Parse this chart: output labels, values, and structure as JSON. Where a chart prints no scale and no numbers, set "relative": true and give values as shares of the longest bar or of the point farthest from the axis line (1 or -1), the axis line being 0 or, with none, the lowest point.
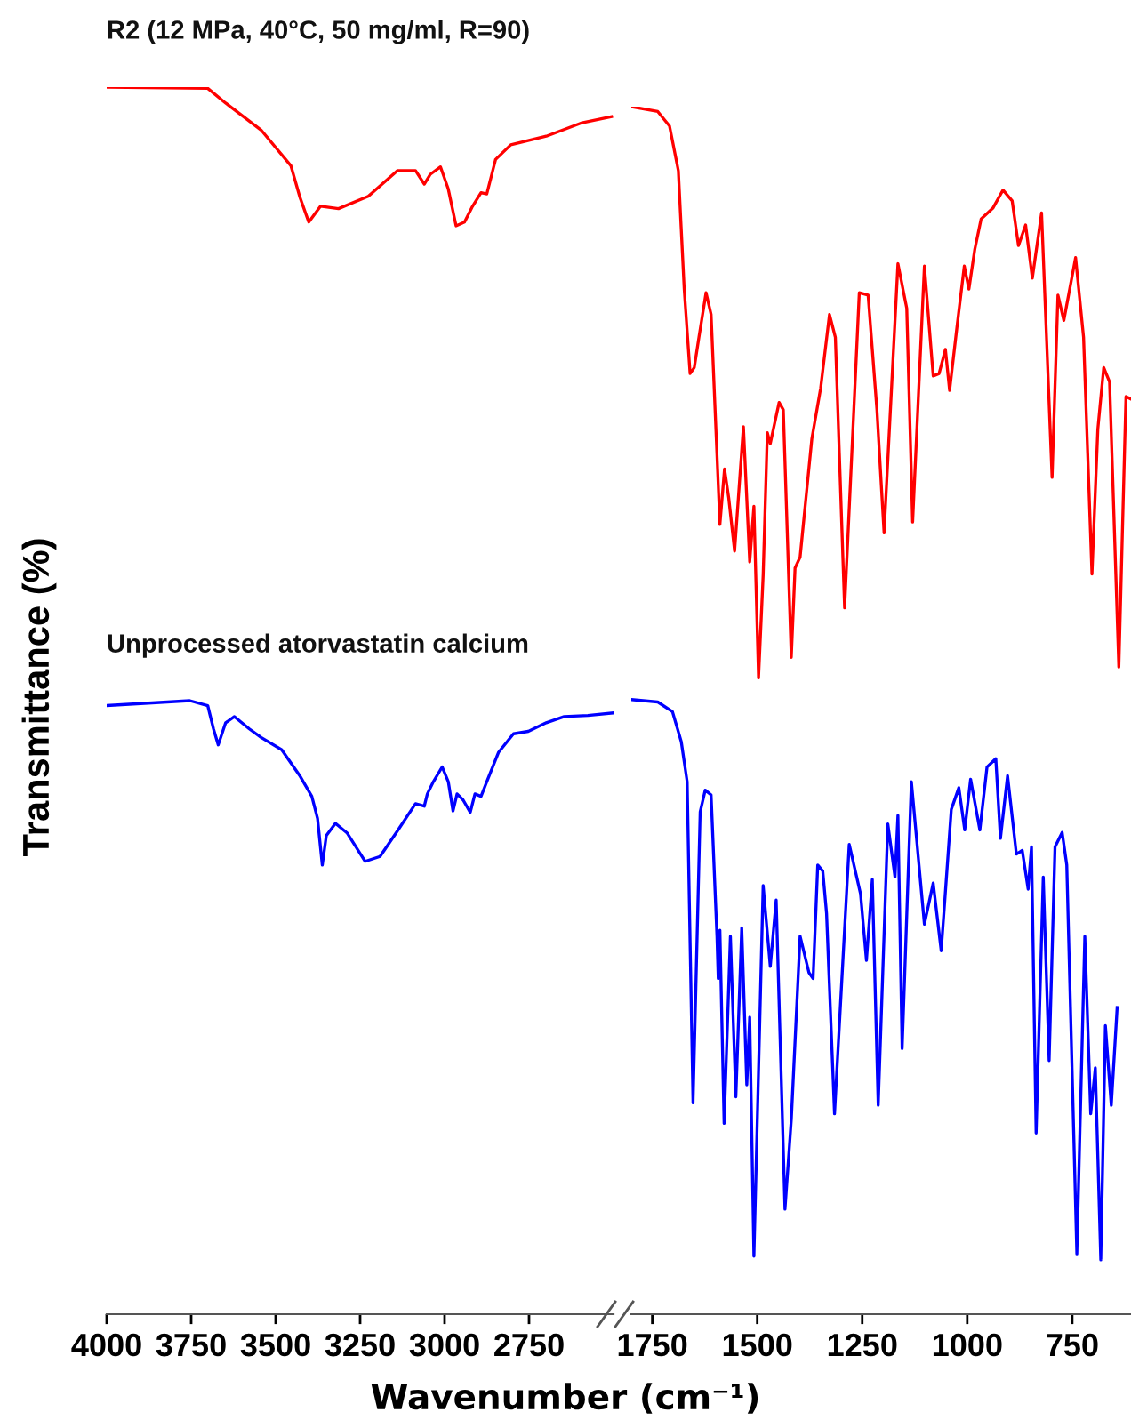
{
  "chart_data": [
    {
      "type": "line",
      "relative": true,
      "ylabel": "Transmittance (%)",
      "xlabel": "Wavenumber (cm⁻¹)",
      "xlim": [
        4000,
        2500
      ],
      "xticks": [
        4000,
        3750,
        3500,
        3250,
        3000,
        2750
      ],
      "tick_labels": "x",
      "grid": false,
      "legend": false,
      "series": [
        {
          "name": "R2 (12 MPa, 40°C, 50 mg/ml, R=90)",
          "color": "#ff0000",
          "x": [
            4000,
            3701,
            3648,
            3543,
            3455,
            3429,
            3402,
            3367,
            3314,
            3226,
            3139,
            3086,
            3060,
            3042,
            3012,
            2989,
            2966,
            2941,
            2919,
            2892,
            2875,
            2849,
            2804,
            2699,
            2593,
            2506
          ],
          "values": [
            1.0,
            0.999,
            0.987,
            0.965,
            0.936,
            0.911,
            0.89,
            0.903,
            0.901,
            0.911,
            0.932,
            0.932,
            0.921,
            0.929,
            0.935,
            0.917,
            0.887,
            0.89,
            0.902,
            0.914,
            0.913,
            0.941,
            0.953,
            0.96,
            0.971,
            0.976
          ]
        },
        {
          "name": "Unprocessed atorvastatin calcium",
          "color": "#0000ff",
          "x": [
            4000,
            3754,
            3701,
            3684,
            3670,
            3648,
            3622,
            3578,
            3543,
            3482,
            3429,
            3393,
            3376,
            3362,
            3350,
            3323,
            3288,
            3235,
            3191,
            3139,
            3086,
            3060,
            3051,
            3033,
            3007,
            2989,
            2975,
            2963,
            2945,
            2924,
            2910,
            2892,
            2875,
            2840,
            2796,
            2752,
            2699,
            2646,
            2576,
            2502
          ],
          "values": [
            0.496,
            0.5,
            0.496,
            0.477,
            0.464,
            0.482,
            0.487,
            0.477,
            0.47,
            0.46,
            0.439,
            0.422,
            0.404,
            0.366,
            0.39,
            0.4,
            0.392,
            0.369,
            0.373,
            0.394,
            0.416,
            0.414,
            0.424,
            0.434,
            0.446,
            0.434,
            0.41,
            0.424,
            0.419,
            0.409,
            0.424,
            0.422,
            0.434,
            0.458,
            0.473,
            0.475,
            0.482,
            0.487,
            0.488,
            0.49
          ]
        }
      ]
    },
    {
      "type": "line",
      "relative": true,
      "xlim": [
        1800,
        610
      ],
      "xticks": [
        1750,
        1500,
        1250,
        1000,
        750
      ],
      "tick_labels": "x",
      "grid": false,
      "legend": false,
      "series": [
        {
          "color": "#ff0000",
          "x": [
            1800,
            1737,
            1709,
            1688,
            1674,
            1660,
            1650,
            1639,
            1622,
            1610,
            1589,
            1578,
            1568,
            1554,
            1533,
            1518,
            1508,
            1497,
            1486,
            1476,
            1469,
            1448,
            1438,
            1419,
            1410,
            1398,
            1370,
            1349,
            1328,
            1314,
            1292,
            1257,
            1236,
            1215,
            1198,
            1165,
            1144,
            1130,
            1102,
            1081,
            1067,
            1052,
            1042,
            1024,
            1007,
            996,
            982,
            967,
            939,
            915,
            893,
            878,
            861,
            845,
            823,
            798,
            784,
            770,
            742,
            723,
            703,
            689,
            675,
            661,
            639,
            622,
            611
          ],
          "values": [
            1.0,
            0.996,
            0.984,
            0.947,
            0.849,
            0.779,
            0.784,
            0.809,
            0.846,
            0.828,
            0.654,
            0.7,
            0.676,
            0.632,
            0.735,
            0.623,
            0.669,
            0.527,
            0.612,
            0.73,
            0.721,
            0.755,
            0.749,
            0.544,
            0.618,
            0.627,
            0.725,
            0.767,
            0.828,
            0.809,
            0.585,
            0.846,
            0.844,
            0.749,
            0.647,
            0.87,
            0.833,
            0.656,
            0.868,
            0.777,
            0.779,
            0.799,
            0.765,
            0.819,
            0.868,
            0.849,
            0.882,
            0.907,
            0.916,
            0.931,
            0.922,
            0.885,
            0.902,
            0.858,
            0.912,
            0.693,
            0.844,
            0.823,
            0.875,
            0.809,
            0.613,
            0.733,
            0.784,
            0.772,
            0.536,
            0.76,
            0.758
          ]
        },
        {
          "color": "#0000ff",
          "x": [
            1800,
            1737,
            1702,
            1681,
            1667,
            1653,
            1636,
            1624,
            1610,
            1596,
            1593,
            1589,
            1579,
            1564,
            1551,
            1537,
            1525,
            1518,
            1508,
            1486,
            1469,
            1455,
            1434,
            1419,
            1398,
            1377,
            1367,
            1356,
            1344,
            1335,
            1316,
            1281,
            1254,
            1240,
            1226,
            1212,
            1189,
            1172,
            1165,
            1155,
            1133,
            1102,
            1081,
            1062,
            1038,
            1020,
            1006,
            992,
            970,
            953,
            932,
            921,
            904,
            883,
            869,
            855,
            847,
            836,
            819,
            805,
            791,
            774,
            763,
            739,
            720,
            706,
            695,
            682,
            671,
            657,
            643
          ],
          "values": [
            0.509,
            0.507,
            0.499,
            0.474,
            0.441,
            0.175,
            0.416,
            0.434,
            0.43,
            0.313,
            0.278,
            0.318,
            0.158,
            0.313,
            0.18,
            0.32,
            0.19,
            0.246,
            0.048,
            0.355,
            0.288,
            0.343,
            0.087,
            0.161,
            0.313,
            0.283,
            0.278,
            0.372,
            0.367,
            0.332,
            0.166,
            0.389,
            0.348,
            0.293,
            0.36,
            0.173,
            0.406,
            0.362,
            0.413,
            0.22,
            0.441,
            0.323,
            0.357,
            0.301,
            0.418,
            0.436,
            0.401,
            0.443,
            0.401,
            0.453,
            0.46,
            0.394,
            0.446,
            0.381,
            0.384,
            0.352,
            0.387,
            0.15,
            0.362,
            0.21,
            0.387,
            0.399,
            0.372,
            0.05,
            0.313,
            0.166,
            0.204,
            0.045,
            0.239,
            0.173,
            0.254
          ]
        }
      ]
    }
  ]
}
